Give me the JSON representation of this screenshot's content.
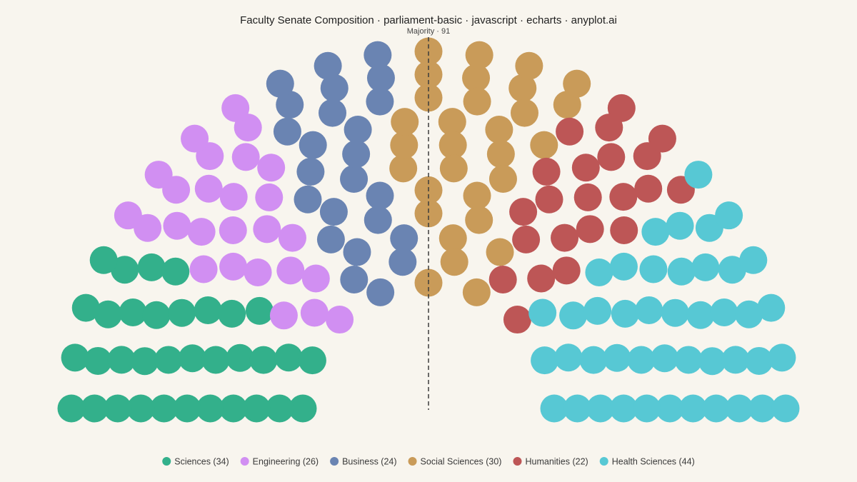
{
  "chart_data": {
    "type": "parliament",
    "title": "Faculty Senate Composition · parliament-basic · javascript · echarts · anyplot.ai",
    "majority_label": "Majority · 91",
    "majority": 91,
    "total_seats": 180,
    "rows": 11,
    "series": [
      {
        "name": "Sciences",
        "seats": 34,
        "color": "#33b08b",
        "legend": "Sciences (34)"
      },
      {
        "name": "Engineering",
        "seats": 26,
        "color": "#d18ff2",
        "legend": "Engineering (26)"
      },
      {
        "name": "Business",
        "seats": 24,
        "color": "#6a84b2",
        "legend": "Business (24)"
      },
      {
        "name": "Social Sciences",
        "seats": 30,
        "color": "#c99b59",
        "legend": "Social Sciences (30)"
      },
      {
        "name": "Humanities",
        "seats": 22,
        "color": "#bd5656",
        "legend": "Humanities (22)"
      },
      {
        "name": "Health Sciences",
        "seats": 44,
        "color": "#57c8d4",
        "legend": "Health Sciences (44)"
      }
    ],
    "legend_position": "bottom-center"
  }
}
